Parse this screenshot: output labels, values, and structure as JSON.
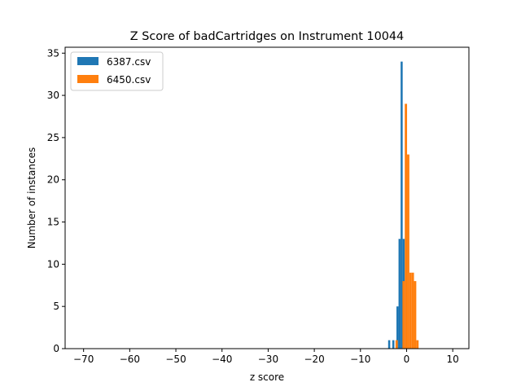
{
  "chart_data": {
    "type": "bar",
    "title": "Z Score of badCartridges on Instrument 10044",
    "xlabel": "z score",
    "ylabel": "Number of instances",
    "xlim": [
      -74,
      13.5
    ],
    "ylim": [
      0,
      35.7
    ],
    "xticks": [
      -70,
      -60,
      -50,
      -40,
      -30,
      -20,
      -10,
      0,
      10
    ],
    "xtick_labels": [
      "−70",
      "−60",
      "−50",
      "−40",
      "−30",
      "−20",
      "−10",
      "0",
      "10"
    ],
    "yticks": [
      0,
      5,
      10,
      15,
      20,
      25,
      30,
      35
    ],
    "ytick_labels": [
      "0",
      "5",
      "10",
      "15",
      "20",
      "25",
      "30",
      "35"
    ],
    "grid": false,
    "legend_position": "top-left",
    "series": [
      {
        "name": "6387.csv",
        "color": "#1f77b4",
        "bins": [
          {
            "x0": -4.0,
            "x1": -3.55,
            "value": 1
          },
          {
            "x0": -3.1,
            "x1": -2.65,
            "value": 1
          },
          {
            "x0": -2.2,
            "x1": -1.75,
            "value": 5
          },
          {
            "x0": -1.75,
            "x1": -1.3,
            "value": 13
          },
          {
            "x0": -1.3,
            "x1": -0.85,
            "value": 34
          },
          {
            "x0": -0.85,
            "x1": -0.4,
            "value": 13
          }
        ]
      },
      {
        "name": "6450.csv",
        "color": "#ff7f0e",
        "bins": [
          {
            "x0": -2.4,
            "x1": -1.9,
            "value": 1
          },
          {
            "x0": -0.9,
            "x1": -0.4,
            "value": 8
          },
          {
            "x0": -0.4,
            "x1": 0.1,
            "value": 29
          },
          {
            "x0": 0.1,
            "x1": 0.6,
            "value": 23
          },
          {
            "x0": 0.6,
            "x1": 1.1,
            "value": 9
          },
          {
            "x0": 1.1,
            "x1": 1.6,
            "value": 9
          },
          {
            "x0": 1.6,
            "x1": 2.1,
            "value": 8
          },
          {
            "x0": 2.1,
            "x1": 2.6,
            "value": 1
          }
        ]
      }
    ]
  }
}
